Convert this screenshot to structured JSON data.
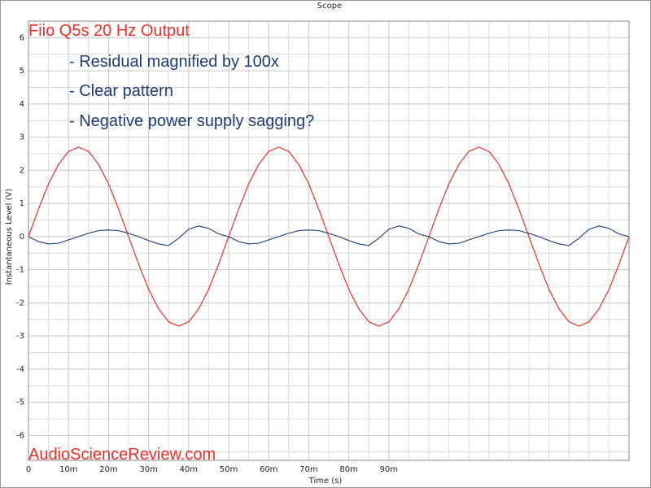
{
  "chart_data": {
    "type": "line",
    "title": "Scope",
    "xlabel": "Time (s)",
    "ylabel": "Instantaneous Level (V)",
    "annotations": [
      {
        "text": "Fiio Q5s 20 Hz Output",
        "color": "#e8302a"
      },
      {
        "text": "- Residual magnified by 100x",
        "color": "#1f3d70"
      },
      {
        "text": "- Clear pattern",
        "color": "#1f3d70"
      },
      {
        "text": "- Negative power supply sagging?",
        "color": "#1f3d70"
      },
      {
        "text": "AudioScienceReview.com",
        "color": "#e8302a"
      }
    ],
    "x": [
      0,
      0.0025,
      0.005,
      0.0075,
      0.01,
      0.0125,
      0.015,
      0.0175,
      0.02,
      0.0225,
      0.025,
      0.0275,
      0.03,
      0.0325,
      0.035,
      0.0375,
      0.04,
      0.0425,
      0.045,
      0.0475,
      0.05,
      0.0525,
      0.055,
      0.0575,
      0.06,
      0.0625,
      0.065,
      0.0675,
      0.07,
      0.0725,
      0.075,
      0.0775,
      0.08,
      0.0825,
      0.085,
      0.0875,
      0.09,
      0.0925,
      0.095,
      0.0975,
      0.1,
      0.1025,
      0.105,
      0.1075,
      0.11,
      0.1125,
      0.115,
      0.1175,
      0.12,
      0.1225,
      0.125,
      0.1275,
      0.13,
      0.1325,
      0.135,
      0.1375,
      0.14,
      0.1425,
      0.145,
      0.1475,
      0.15
    ],
    "series": [
      {
        "name": "Output",
        "color": "#e8302a",
        "values": [
          0,
          0.83,
          1.59,
          2.18,
          2.57,
          2.7,
          2.57,
          2.18,
          1.59,
          0.83,
          0,
          -0.83,
          -1.59,
          -2.18,
          -2.57,
          -2.7,
          -2.57,
          -2.18,
          -1.59,
          -0.83,
          0,
          0.83,
          1.59,
          2.18,
          2.57,
          2.7,
          2.57,
          2.18,
          1.59,
          0.83,
          0,
          -0.83,
          -1.59,
          -2.18,
          -2.57,
          -2.7,
          -2.57,
          -2.18,
          -1.59,
          -0.83,
          0,
          0.83,
          1.59,
          2.18,
          2.57,
          2.7,
          2.57,
          2.18,
          1.59,
          0.83,
          0,
          -0.83,
          -1.59,
          -2.18,
          -2.57,
          -2.7,
          -2.57,
          -2.18,
          -1.59,
          -0.83,
          0
        ]
      },
      {
        "name": "Residual",
        "color": "#2e4a7d",
        "values": [
          0,
          -0.15,
          -0.22,
          -0.2,
          -0.1,
          0,
          0.1,
          0.18,
          0.2,
          0.18,
          0.1,
          0,
          -0.12,
          -0.22,
          -0.27,
          -0.05,
          0.22,
          0.32,
          0.25,
          0.08,
          0,
          -0.15,
          -0.22,
          -0.2,
          -0.1,
          0,
          0.1,
          0.18,
          0.2,
          0.18,
          0.1,
          0,
          -0.12,
          -0.22,
          -0.27,
          -0.05,
          0.22,
          0.32,
          0.25,
          0.08,
          0,
          -0.15,
          -0.22,
          -0.2,
          -0.1,
          0,
          0.1,
          0.18,
          0.2,
          0.18,
          0.1,
          0,
          -0.12,
          -0.22,
          -0.27,
          -0.05,
          0.22,
          0.32,
          0.25,
          0.08,
          0
        ]
      }
    ],
    "xlim": [
      0,
      0.15
    ],
    "ylim": [
      -6.75,
      6.5
    ],
    "xticks": [
      0,
      {
        "value": 0.01,
        "label": "10m"
      },
      {
        "value": 0.02,
        "label": "20m"
      },
      {
        "value": 0.03,
        "label": "30m"
      },
      {
        "value": 0.04,
        "label": "40m"
      },
      {
        "value": 0.05,
        "label": "50m"
      },
      {
        "value": 0.06,
        "label": "60m"
      },
      {
        "value": 0.07,
        "label": "70m"
      },
      {
        "value": 0.08,
        "label": "80m"
      },
      {
        "value": 0.09,
        "label": "90m"
      }
    ],
    "yticks": [
      -6,
      -5,
      -4,
      -3,
      -2,
      -1,
      0,
      1,
      2,
      3,
      4,
      5,
      6
    ],
    "grid": true
  }
}
